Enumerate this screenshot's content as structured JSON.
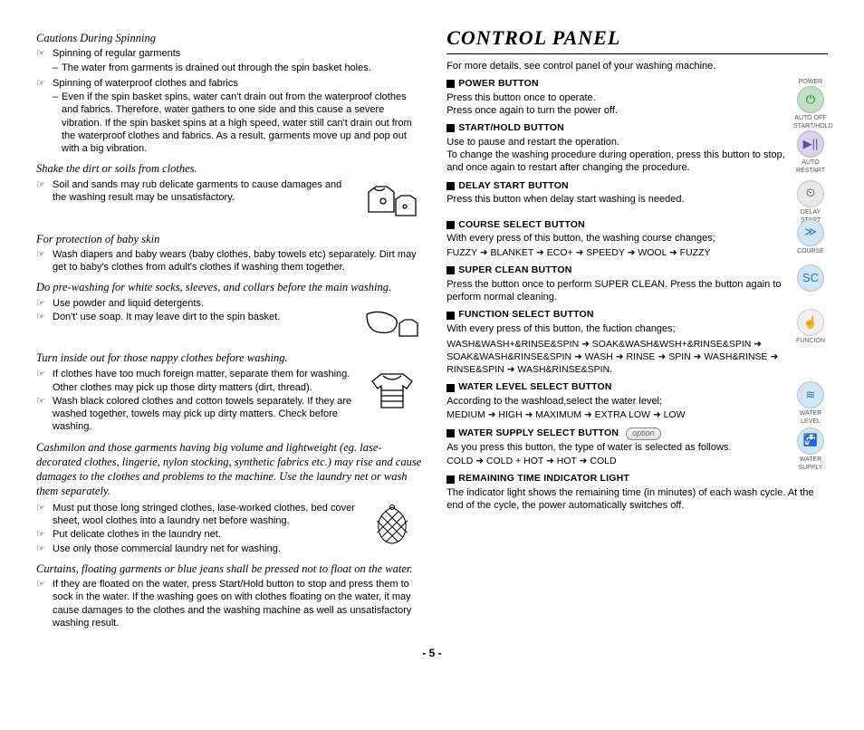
{
  "pageNumber": "- 5 -",
  "left": {
    "sections": [
      {
        "heading": "Cautions During Spinning",
        "bullets": [
          {
            "text": "Spinning of regular garments",
            "sub": "The water from garments is drained out through the spin basket holes."
          },
          {
            "text": "Spinning of waterproof clothes and fabrics",
            "sub": "Even if the spin basket spins, water can't drain out from the waterproof clothes and fabrics. Therefore, water gathers to one side and this cause a severe vibration. If the spin basket spins at a high speed, water still can't drain out from the waterproof clothes and fabrics. As a result, garments move up and pop out with a big vibration."
          }
        ]
      },
      {
        "heading": "Shake the dirt or soils from clothes.",
        "bullets": [
          {
            "text": "Soil and sands may rub delicate garments to cause damages and the washing result may be unsatisfactory."
          }
        ]
      },
      {
        "heading": "For protection of baby skin",
        "bullets": [
          {
            "text": "Wash diapers and baby wears (baby clothes, baby towels etc) separately. Dirt may get to baby's clothes from adult's clothes if washing them together."
          }
        ]
      },
      {
        "heading": "Do pre-washing for white socks, sleeves, and collars before the main washing.",
        "bullets": [
          {
            "text": "Use powder and liquid detergents."
          },
          {
            "text": "Don't' use soap. It may leave dirt to the spin basket."
          }
        ]
      },
      {
        "heading": "Turn inside out for those nappy clothes before washing.",
        "bullets": [
          {
            "text": "If clothes have too much foreign matter, separate them for washing. Other clothes may pick up those dirty matters (dirt, thread)."
          },
          {
            "text": "Wash black colored clothes and cotton towels separately. If they are washed together, towels may pick up dirty matters. Check before washing."
          }
        ]
      },
      {
        "heading": "Cashmilon and those garments having big volume and lightweight (eg. lase-decorated clothes, lingerie, nylon stocking, synthetic fabrics etc.) may rise and cause damages to the clothes and problems to the machine. Use the laundry net or wash them separately.",
        "bullets": [
          {
            "text": "Must put those long stringed clothes, lase-worked clothes, bed cover sheet, wool clothes into a laundry net before washing."
          },
          {
            "text": "Put delicate clothes in the laundry net."
          },
          {
            "text": "Use only those commercial laundry net for washing."
          }
        ]
      },
      {
        "heading": "Curtains, floating garments or blue jeans shall be pressed not to float on the water.",
        "bullets": [
          {
            "text": "If they are floated on the water, press Start/Hold button to stop and press them to sock in the water. If the washing goes on with clothes floating on the water, it may cause damages to the clothes and the washing machine as well as unsatisfactory washing result."
          }
        ]
      }
    ]
  },
  "right": {
    "title": "CONTROL PANEL",
    "intro": "For more details, see control panel of your washing machine.",
    "items": [
      {
        "label": "POWER BUTTON",
        "text": "Press this button once to operate.\nPress once again to turn the power off.",
        "icon": {
          "caption": "POWER",
          "bottom": "AUTO OFF",
          "bg": "#bfe0c2",
          "fg": "#0a7a3a",
          "glyph": "⏻"
        }
      },
      {
        "label": "START/HOLD BUTTON",
        "text": "Use to pause and restart the operation.\nTo change the washing procedure during operation, press this button to stop, and once again to restart after changing the procedure.",
        "icon": {
          "caption": "START/HOLD",
          "bottom": "AUTO RESTART",
          "bg": "#d9d2ea",
          "fg": "#5a4fa0",
          "glyph": "▶||"
        }
      },
      {
        "label": "DELAY START BUTTON",
        "text": "Press this button when delay start washing is needed.",
        "icon": {
          "caption": "",
          "bottom": "DELAY START",
          "bg": "#e8e8e8",
          "fg": "#333",
          "glyph": "⏲"
        },
        "spacer": true
      },
      {
        "label": "COURSE SELECT BUTTON",
        "text": "With every press of this button, the washing course changes;",
        "flow": "FUZZY ➜ BLANKET ➜ ECO+  ➜ SPEEDY ➜ WOOL ➜ FUZZY",
        "icon": {
          "caption": "",
          "bottom": "COURSE",
          "bg": "#cfe6f4",
          "fg": "#2277bb",
          "glyph": "≫"
        }
      },
      {
        "label": "SUPER CLEAN BUTTON",
        "text": "Press the button once to perform SUPER CLEAN. Press the button again to perform normal cleaning.",
        "icon": {
          "caption": "",
          "bottom": "",
          "bg": "#cfe6f4",
          "fg": "#2277bb",
          "glyph": "SC"
        }
      },
      {
        "label": "FUNCTION SELECT BUTTON",
        "text": "With every press of this button, the fuction changes;",
        "flowFull": "WASH&WASH+&RINSE&SPIN ➜ SOAK&WASH&WSH+&RINSE&SPIN ➜ SOAK&WASH&RINSE&SPIN ➜ WASH ➜ RINSE ➜ SPIN ➜ WASH&RINSE ➜ RINSE&SPIN ➜ WASH&RINSE&SPIN.",
        "icon": {
          "caption": "",
          "bottom": "FUNCION",
          "bg": "#efefef",
          "fg": "#777",
          "glyph": "☝"
        }
      },
      {
        "label": "WATER LEVEL SELECT BUTTON",
        "text": "According to the washload,select the water level;",
        "flow": "MEDIUM ➜ HIGH ➜ MAXIMUM ➜ EXTRA LOW ➜ LOW",
        "icon": {
          "caption": "",
          "bottom": "WATER LEVEL",
          "bg": "#cfe6f4",
          "fg": "#2277bb",
          "glyph": "≋"
        }
      },
      {
        "label": "WATER SUPPLY SELECT BUTTON",
        "option": true,
        "text": "As you press this button, the type of water is selected as follows.",
        "flow": "COLD ➜ COLD + HOT ➜ HOT ➜ COLD",
        "icon": {
          "caption": "",
          "bottom": "WATER SUPPLY",
          "bg": "#cfe6f4",
          "fg": "#2277bb",
          "glyph": "🚰"
        }
      },
      {
        "label": "REMAINING TIME INDICATOR LIGHT",
        "textFull": "The indicator light shows the remaining time (in minutes) of each wash cycle. At the end of the cycle, the power automatically switches off."
      }
    ]
  },
  "bulletGlyph": "☞",
  "dashGlyph": "–"
}
